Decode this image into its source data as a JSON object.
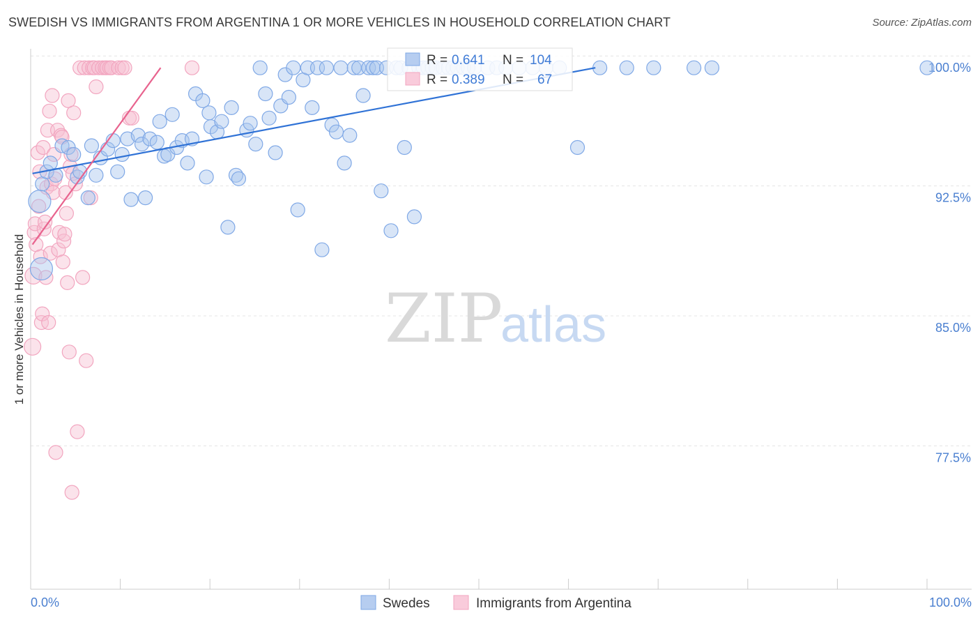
{
  "title": "SWEDISH VS IMMIGRANTS FROM ARGENTINA 1 OR MORE VEHICLES IN HOUSEHOLD CORRELATION CHART",
  "source": "Source: ZipAtlas.com",
  "watermark": {
    "zip": "ZIP",
    "atlas": "atlas"
  },
  "colors": {
    "blue": "#7fa8e6",
    "blue_line": "#2f72d6",
    "pink": "#f2a5bf",
    "pink_line": "#e8638e",
    "grid": "#e4e4e4",
    "tick_text": "#4a7fd0"
  },
  "chart_data": {
    "type": "scatter",
    "title": "SWEDISH VS IMMIGRANTS FROM ARGENTINA 1 OR MORE VEHICLES IN HOUSEHOLD CORRELATION CHART",
    "xlabel": "",
    "ylabel": "1 or more Vehicles in Household",
    "xlim": [
      0,
      105
    ],
    "ylim": [
      70.6,
      101.2
    ],
    "x_tick_labels": [
      "0.0%",
      "100.0%"
    ],
    "y_ticks": [
      77.5,
      85.0,
      92.5,
      100.0
    ],
    "y_tick_labels": [
      "77.5%",
      "85.0%",
      "92.5%",
      "100.0%"
    ],
    "legend": [
      {
        "name": "Swedes",
        "color": "#7fa8e6"
      },
      {
        "name": "Immigrants from Argentina",
        "color": "#f2a5bf"
      }
    ],
    "stats": [
      {
        "r_label": "R =",
        "r": "0.641",
        "n_label": "N =",
        "n": "104"
      },
      {
        "r_label": "R =",
        "r": "0.389",
        "n_label": "N =",
        "n": "67"
      }
    ],
    "series": [
      {
        "name": "Swedes",
        "color": "#7fa8e6",
        "trend": {
          "x0": 0.2,
          "y0": 93.9,
          "x1": 63.0,
          "y1": 100.0
        },
        "points": [
          [
            1.0,
            92.3,
            16
          ],
          [
            1.2,
            88.4,
            16
          ],
          [
            1.3,
            93.3,
            10
          ],
          [
            1.8,
            94.0,
            10
          ],
          [
            2.2,
            94.5,
            10
          ],
          [
            2.8,
            93.8,
            10
          ],
          [
            3.5,
            95.5,
            10
          ],
          [
            4.2,
            95.4,
            10
          ],
          [
            4.8,
            95.0,
            10
          ],
          [
            5.2,
            93.7,
            10
          ],
          [
            5.5,
            94.0,
            10
          ],
          [
            6.4,
            92.5,
            10
          ],
          [
            6.8,
            95.5,
            10
          ],
          [
            7.3,
            93.8,
            10
          ],
          [
            7.8,
            94.8,
            10
          ],
          [
            8.6,
            95.3,
            10
          ],
          [
            9.2,
            95.8,
            10
          ],
          [
            9.7,
            94.0,
            10
          ],
          [
            10.2,
            95.0,
            10
          ],
          [
            10.8,
            95.9,
            10
          ],
          [
            11.2,
            92.4,
            10
          ],
          [
            12.0,
            96.1,
            10
          ],
          [
            12.4,
            95.6,
            10
          ],
          [
            12.8,
            92.5,
            10
          ],
          [
            13.3,
            95.9,
            10
          ],
          [
            14.1,
            95.7,
            10
          ],
          [
            14.4,
            96.9,
            10
          ],
          [
            14.9,
            94.9,
            10
          ],
          [
            15.3,
            95.0,
            10
          ],
          [
            15.8,
            97.3,
            10
          ],
          [
            16.3,
            95.4,
            10
          ],
          [
            16.9,
            95.8,
            10
          ],
          [
            17.5,
            94.5,
            10
          ],
          [
            18.0,
            95.9,
            10
          ],
          [
            18.4,
            98.5,
            10
          ],
          [
            19.2,
            98.1,
            10
          ],
          [
            19.6,
            93.7,
            10
          ],
          [
            19.9,
            97.4,
            10
          ],
          [
            20.1,
            96.6,
            10
          ],
          [
            20.8,
            96.3,
            10
          ],
          [
            21.3,
            96.9,
            10
          ],
          [
            22.0,
            90.8,
            10
          ],
          [
            22.4,
            97.7,
            10
          ],
          [
            22.9,
            93.8,
            10
          ],
          [
            23.2,
            93.6,
            10
          ],
          [
            24.1,
            96.4,
            10
          ],
          [
            24.5,
            96.8,
            10
          ],
          [
            25.1,
            95.6,
            10
          ],
          [
            25.6,
            100.0,
            10
          ],
          [
            26.2,
            98.5,
            10
          ],
          [
            26.6,
            97.1,
            10
          ],
          [
            27.3,
            95.1,
            10
          ],
          [
            27.9,
            97.8,
            10
          ],
          [
            28.4,
            99.6,
            10
          ],
          [
            28.8,
            98.3,
            10
          ],
          [
            29.3,
            100.0,
            10
          ],
          [
            29.8,
            91.8,
            10
          ],
          [
            30.4,
            99.3,
            10
          ],
          [
            30.9,
            100.0,
            10
          ],
          [
            31.4,
            97.7,
            10
          ],
          [
            32.0,
            100.0,
            10
          ],
          [
            32.5,
            89.5,
            10
          ],
          [
            33.0,
            100.0,
            10
          ],
          [
            33.6,
            96.7,
            10
          ],
          [
            34.1,
            96.3,
            10
          ],
          [
            34.6,
            100.0,
            10
          ],
          [
            35.0,
            94.5,
            10
          ],
          [
            35.6,
            96.1,
            10
          ],
          [
            36.1,
            100.0,
            10
          ],
          [
            36.6,
            100.0,
            10
          ],
          [
            37.1,
            98.4,
            10
          ],
          [
            37.7,
            100.0,
            10
          ],
          [
            38.2,
            100.0,
            10
          ],
          [
            38.6,
            100.0,
            10
          ],
          [
            39.1,
            92.9,
            10
          ],
          [
            39.7,
            100.0,
            10
          ],
          [
            40.2,
            90.6,
            10
          ],
          [
            40.8,
            100.0,
            10
          ],
          [
            41.3,
            100.0,
            10
          ],
          [
            41.7,
            95.4,
            10
          ],
          [
            42.2,
            100.0,
            10
          ],
          [
            42.8,
            91.4,
            10
          ],
          [
            43.3,
            100.0,
            10
          ],
          [
            43.8,
            100.0,
            10
          ],
          [
            44.3,
            100.0,
            10
          ],
          [
            44.8,
            100.0,
            10
          ],
          [
            45.2,
            100.0,
            10
          ],
          [
            46.0,
            100.0,
            10
          ],
          [
            46.6,
            100.0,
            10
          ],
          [
            47.1,
            100.0,
            10
          ],
          [
            47.6,
            100.0,
            10
          ],
          [
            48.3,
            100.0,
            10
          ],
          [
            48.8,
            100.0,
            10
          ],
          [
            49.5,
            100.0,
            10
          ],
          [
            51.0,
            100.0,
            10
          ],
          [
            52.0,
            100.0,
            10
          ],
          [
            53.0,
            100.0,
            10
          ],
          [
            54.5,
            100.0,
            10
          ],
          [
            56.0,
            100.0,
            10
          ],
          [
            57.5,
            100.0,
            10
          ],
          [
            59.0,
            100.0,
            10
          ],
          [
            61.0,
            95.4,
            10
          ],
          [
            63.5,
            100.0,
            10
          ],
          [
            66.5,
            100.0,
            10
          ],
          [
            69.5,
            100.0,
            10
          ],
          [
            74.0,
            100.0,
            10
          ],
          [
            76.0,
            100.0,
            10
          ],
          [
            100.0,
            100.0,
            10
          ]
        ]
      },
      {
        "name": "Immigrants from Argentina",
        "color": "#f2a5bf",
        "trend": {
          "x0": 0.2,
          "y0": 89.8,
          "x1": 14.5,
          "y1": 100.0
        },
        "points": [
          [
            0.2,
            83.9,
            12
          ],
          [
            0.3,
            88.0,
            12
          ],
          [
            0.4,
            90.5,
            10
          ],
          [
            0.5,
            91.0,
            10
          ],
          [
            0.6,
            89.8,
            10
          ],
          [
            0.8,
            95.1,
            10
          ],
          [
            0.9,
            92.0,
            10
          ],
          [
            1.0,
            94.0,
            10
          ],
          [
            1.1,
            89.1,
            10
          ],
          [
            1.2,
            85.3,
            10
          ],
          [
            1.3,
            85.8,
            10
          ],
          [
            1.4,
            95.4,
            10
          ],
          [
            1.5,
            90.7,
            10
          ],
          [
            1.6,
            91.1,
            10
          ],
          [
            1.7,
            87.9,
            10
          ],
          [
            1.8,
            93.1,
            10
          ],
          [
            1.9,
            96.4,
            10
          ],
          [
            2.0,
            85.3,
            10
          ],
          [
            2.1,
            97.5,
            10
          ],
          [
            2.2,
            89.3,
            10
          ],
          [
            2.3,
            93.3,
            10
          ],
          [
            2.4,
            98.4,
            10
          ],
          [
            2.5,
            92.8,
            10
          ],
          [
            2.6,
            95.0,
            10
          ],
          [
            2.7,
            93.6,
            10
          ],
          [
            2.8,
            77.8,
            10
          ],
          [
            3.0,
            96.4,
            10
          ],
          [
            3.1,
            89.5,
            10
          ],
          [
            3.2,
            90.5,
            10
          ],
          [
            3.4,
            96.1,
            10
          ],
          [
            3.5,
            96.0,
            10
          ],
          [
            3.6,
            88.8,
            10
          ],
          [
            3.7,
            90.0,
            10
          ],
          [
            3.8,
            90.4,
            10
          ],
          [
            3.9,
            92.8,
            10
          ],
          [
            4.0,
            91.6,
            10
          ],
          [
            4.1,
            87.6,
            10
          ],
          [
            4.2,
            98.1,
            10
          ],
          [
            4.3,
            83.6,
            10
          ],
          [
            4.4,
            94.3,
            10
          ],
          [
            4.5,
            95.0,
            10
          ],
          [
            4.6,
            75.5,
            10
          ],
          [
            4.7,
            93.9,
            10
          ],
          [
            4.8,
            97.4,
            10
          ],
          [
            5.0,
            93.3,
            10
          ],
          [
            5.2,
            79.0,
            10
          ],
          [
            5.5,
            100.0,
            10
          ],
          [
            5.8,
            87.9,
            10
          ],
          [
            6.0,
            100.0,
            10
          ],
          [
            6.2,
            83.1,
            10
          ],
          [
            6.5,
            100.0,
            10
          ],
          [
            6.7,
            92.5,
            10
          ],
          [
            6.9,
            100.0,
            10
          ],
          [
            7.1,
            100.0,
            10
          ],
          [
            7.3,
            98.9,
            10
          ],
          [
            7.6,
            100.0,
            10
          ],
          [
            8.0,
            100.0,
            10
          ],
          [
            8.3,
            100.0,
            10
          ],
          [
            8.5,
            100.0,
            10
          ],
          [
            8.8,
            100.0,
            10
          ],
          [
            9.0,
            100.0,
            10
          ],
          [
            9.8,
            100.0,
            10
          ],
          [
            10.2,
            100.0,
            10
          ],
          [
            10.5,
            100.0,
            10
          ],
          [
            11.0,
            97.1,
            10
          ],
          [
            11.3,
            97.1,
            10
          ],
          [
            18.0,
            100.0,
            10
          ]
        ]
      }
    ]
  }
}
